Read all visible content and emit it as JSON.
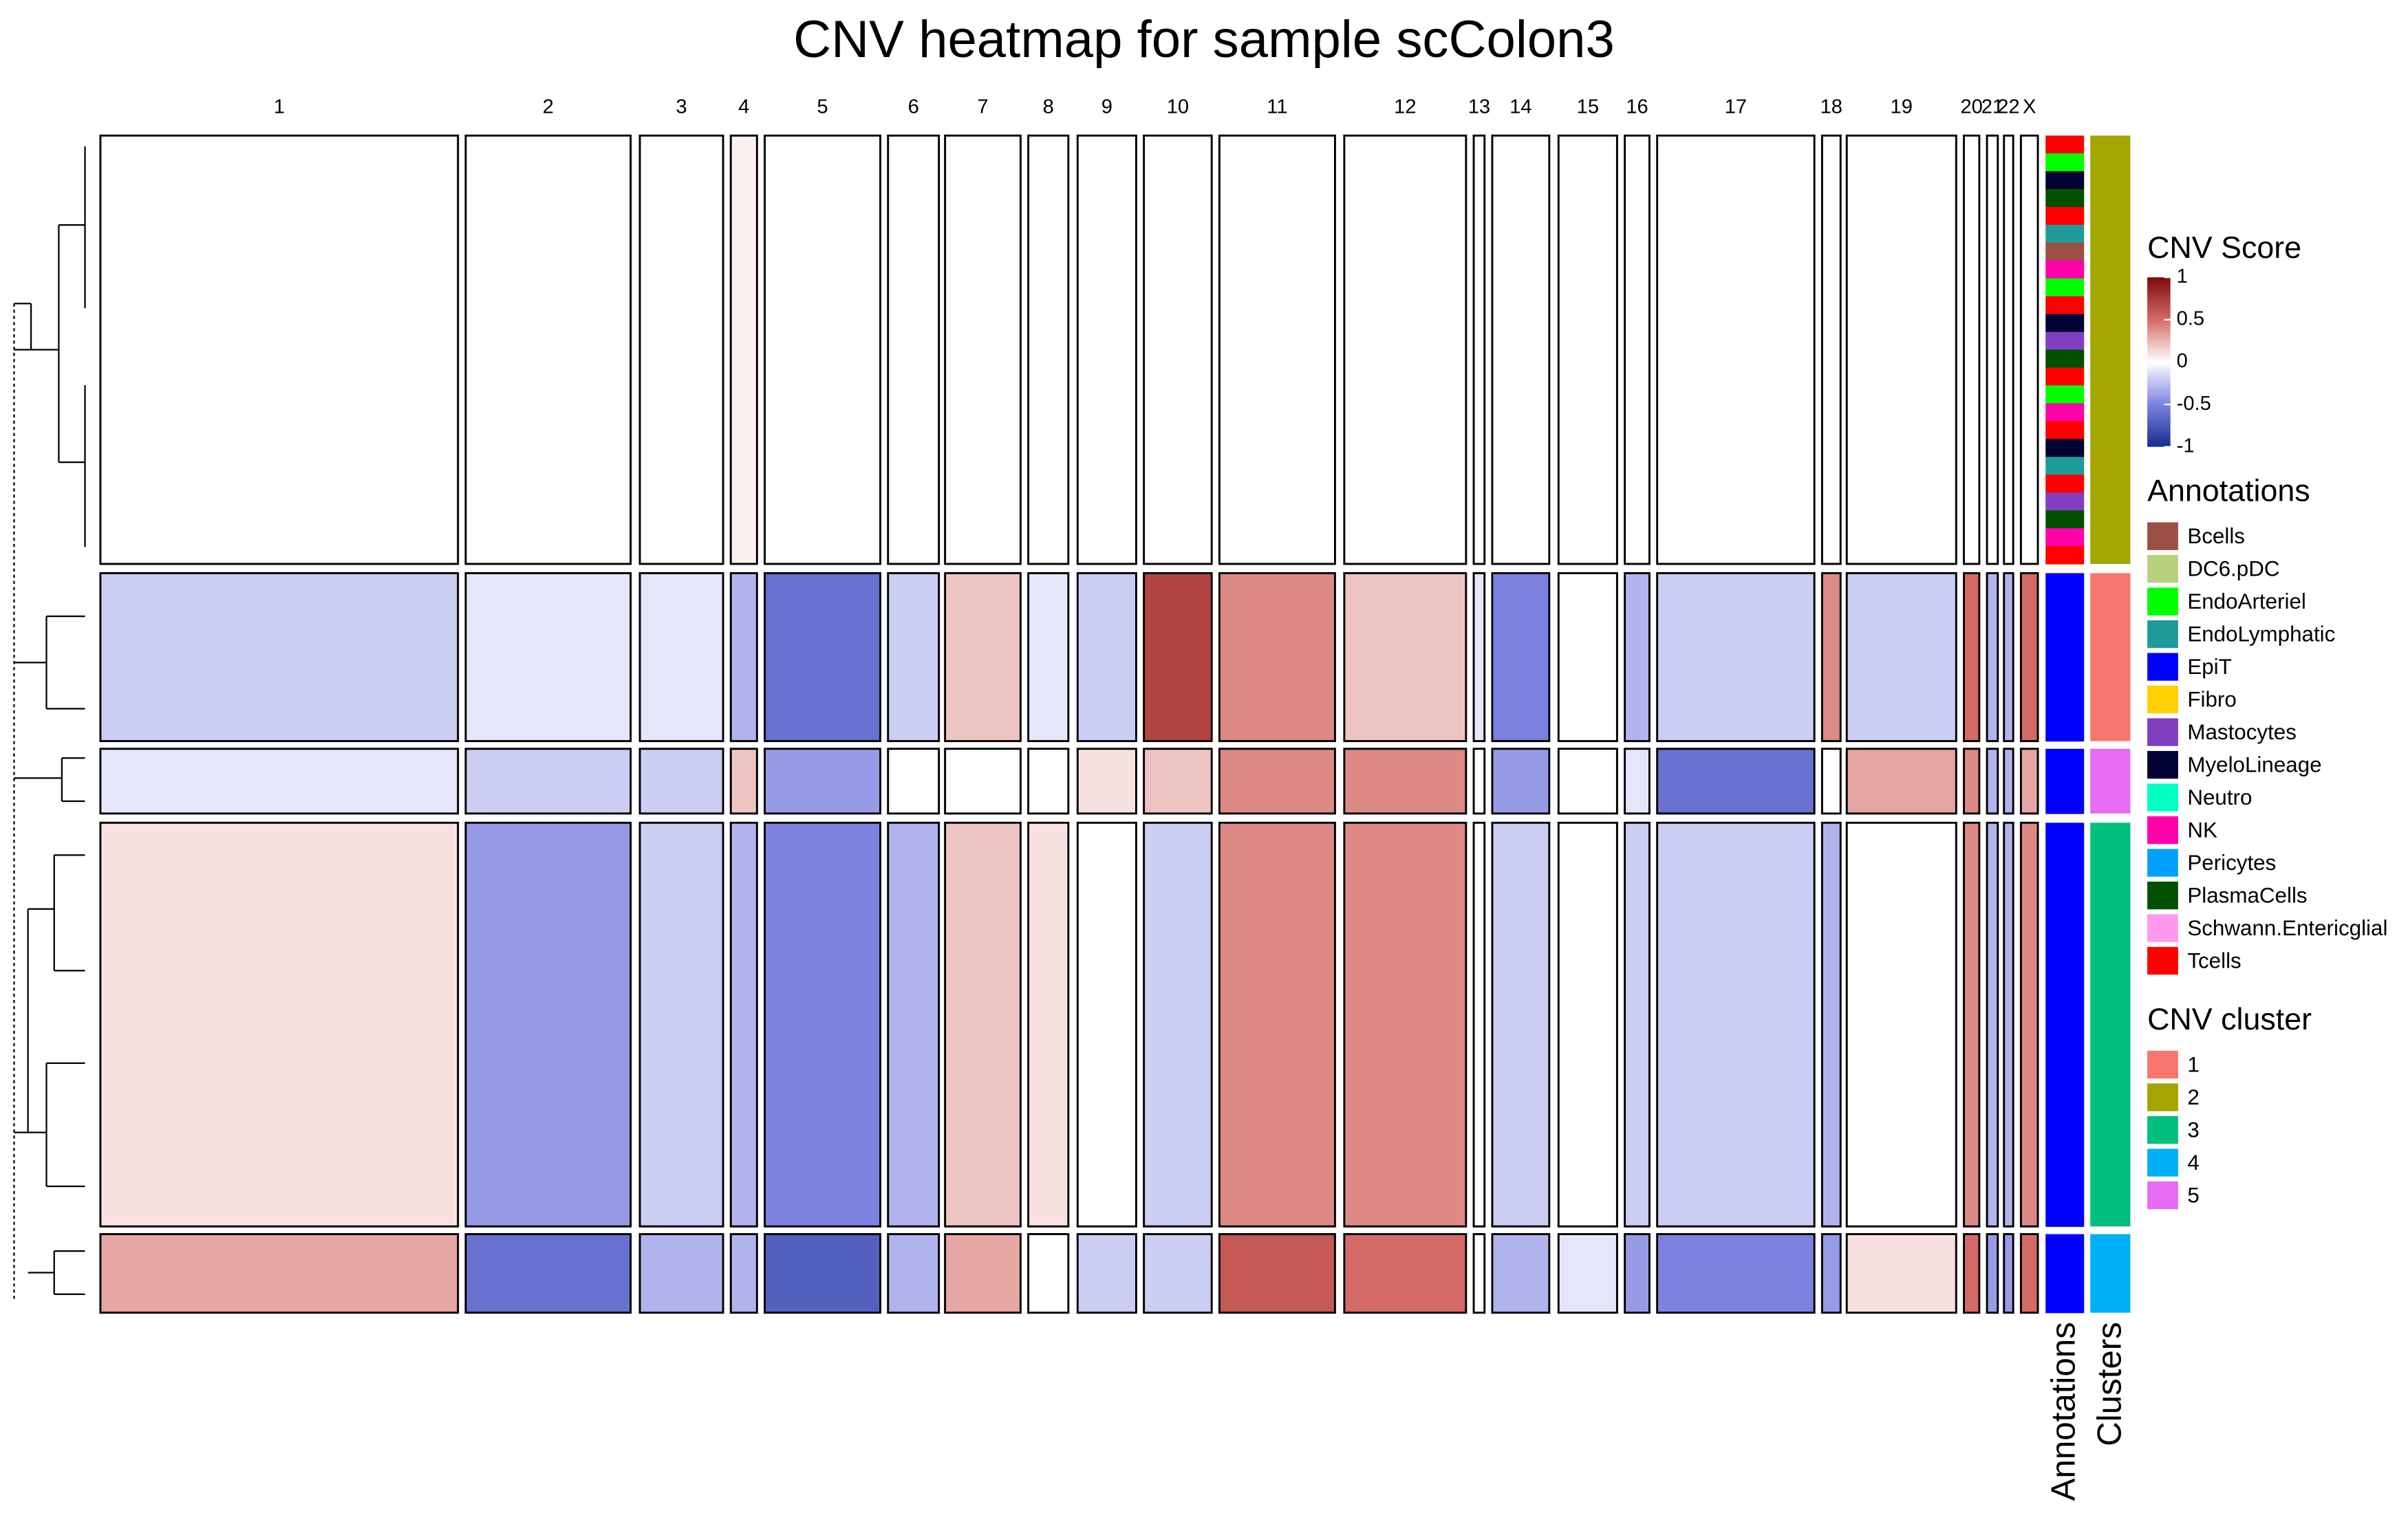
{
  "chart_data": {
    "type": "heatmap",
    "title": "CNV heatmap for sample scColon3",
    "columns": [
      "1",
      "2",
      "3",
      "4",
      "5",
      "6",
      "7",
      "8",
      "9",
      "10",
      "11",
      "12",
      "13",
      "14",
      "15",
      "16",
      "17",
      "18",
      "19",
      "20",
      "21",
      "22",
      "X"
    ],
    "rows": [
      {
        "cluster": "2",
        "annotations": [
          "Tcells",
          "EndoArteriel",
          "MyeloLineage",
          "PlasmaCells",
          "Tcells",
          "EndoLymphatic",
          "Bcells",
          "NK",
          "EndoArteriel",
          "Tcells",
          "MyeloLineage",
          "Mastocytes",
          "PlasmaCells",
          "Tcells",
          "EndoArteriel",
          "NK",
          "Tcells",
          "MyeloLineage",
          "EndoLymphatic",
          "Tcells",
          "Mastocytes",
          "PlasmaCells",
          "NK",
          "Tcells"
        ],
        "values": [
          0,
          0,
          0,
          0.05,
          0,
          0,
          0,
          0,
          0,
          0,
          0,
          0,
          0,
          0,
          0,
          0,
          0,
          0,
          0,
          0,
          0,
          0,
          0
        ]
      },
      {
        "cluster": "1",
        "annotations": [
          "EpiT"
        ],
        "values": [
          -0.2,
          -0.1,
          -0.1,
          -0.3,
          -0.6,
          -0.2,
          0.2,
          -0.1,
          -0.2,
          0.7,
          0.4,
          0.2,
          -0.1,
          -0.5,
          0,
          -0.3,
          -0.2,
          0.4,
          -0.2,
          0.5,
          -0.3,
          -0.3,
          0.5
        ]
      },
      {
        "cluster": "5",
        "annotations": [
          "EpiT"
        ],
        "values": [
          -0.1,
          -0.2,
          -0.2,
          0.2,
          -0.4,
          0,
          0,
          0,
          0.1,
          0.2,
          0.4,
          0.4,
          0,
          -0.4,
          0,
          -0.1,
          -0.6,
          0,
          0.3,
          0.4,
          -0.3,
          -0.3,
          0.3
        ]
      },
      {
        "cluster": "3",
        "annotations": [
          "EpiT"
        ],
        "values": [
          0.1,
          -0.4,
          -0.2,
          -0.3,
          -0.5,
          -0.3,
          0.2,
          0.1,
          0,
          -0.2,
          0.4,
          0.4,
          0,
          -0.2,
          0,
          -0.2,
          -0.2,
          -0.3,
          0,
          0.4,
          -0.3,
          -0.3,
          0.4
        ]
      },
      {
        "cluster": "4",
        "annotations": [
          "EpiT"
        ],
        "values": [
          0.3,
          -0.6,
          -0.3,
          -0.3,
          -0.7,
          -0.3,
          0.3,
          0,
          -0.2,
          -0.2,
          0.6,
          0.5,
          0,
          -0.3,
          -0.1,
          -0.4,
          -0.5,
          -0.4,
          0.1,
          0.5,
          -0.4,
          -0.4,
          0.5
        ]
      }
    ],
    "colorbar": {
      "title": "CNV Score",
      "zlim": [
        -1,
        1
      ],
      "zticks": [
        1,
        0.5,
        0,
        -0.5,
        -1
      ],
      "colors": [
        "#7b0a0a",
        "#d56b66",
        "#ffffff",
        "#7d82e0",
        "#152e8c"
      ]
    },
    "annotation_legend": {
      "title": "Annotations",
      "items": [
        {
          "name": "Bcells",
          "color": "#9b4f45"
        },
        {
          "name": "DC6.pDC",
          "color": "#b6d07c"
        },
        {
          "name": "EndoArteriel",
          "color": "#00ff00"
        },
        {
          "name": "EndoLymphatic",
          "color": "#1f9a9a"
        },
        {
          "name": "EpiT",
          "color": "#0000ff"
        },
        {
          "name": "Fibro",
          "color": "#ffd000"
        },
        {
          "name": "Mastocytes",
          "color": "#7f3fbf"
        },
        {
          "name": "MyeloLineage",
          "color": "#000033"
        },
        {
          "name": "Neutro",
          "color": "#00ffc0"
        },
        {
          "name": "NK",
          "color": "#ff00aa"
        },
        {
          "name": "Pericytes",
          "color": "#00a0ff"
        },
        {
          "name": "PlasmaCells",
          "color": "#005000"
        },
        {
          "name": "Schwann.Entericglial",
          "color": "#ff99ee"
        },
        {
          "name": "Tcells",
          "color": "#ff0000"
        }
      ]
    },
    "cluster_legend": {
      "title": "CNV cluster",
      "items": [
        {
          "name": "1",
          "color": "#f8766d"
        },
        {
          "name": "2",
          "color": "#a3a500"
        },
        {
          "name": "3",
          "color": "#00bf7d"
        },
        {
          "name": "4",
          "color": "#00b0f6"
        },
        {
          "name": "5",
          "color": "#e76bf3"
        }
      ]
    },
    "side_labels": [
      "Annotations",
      "Clusters"
    ]
  }
}
